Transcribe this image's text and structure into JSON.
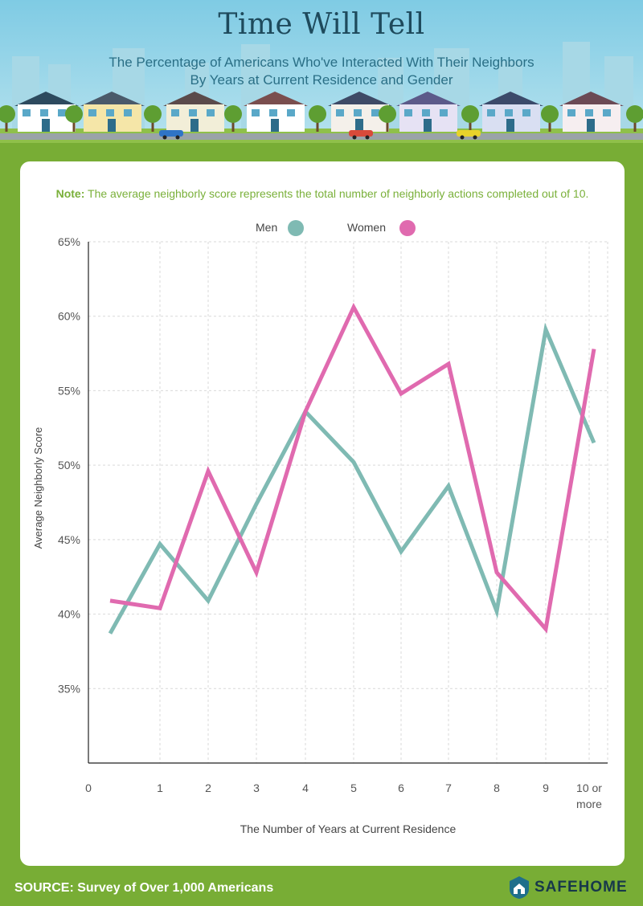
{
  "header": {
    "title": "Time Will Tell",
    "subtitle_line1": "The Percentage of Americans Who've Interacted With Their Neighbors",
    "subtitle_line2": "By Years at Current Residence and Gender"
  },
  "note": {
    "label": "Note:",
    "text": "The average neighborly score represents the total number of neighborly actions completed out of 10."
  },
  "footer": {
    "source": "SOURCE: Survey of Over 1,000 Americans",
    "brand": "SAFEHOME"
  },
  "colors": {
    "men": "#7fbab3",
    "women": "#e06aaf",
    "accent_green": "#78ad35",
    "note_green": "#7ab03a"
  },
  "chart_data": {
    "type": "line",
    "ylabel": "Average Neighborly Score",
    "xlabel": "The Number of Years at Current Residence",
    "x_ticks": [
      "0",
      "1",
      "2",
      "3",
      "4",
      "5",
      "6",
      "7",
      "8",
      "9",
      "10 or more"
    ],
    "categories": [
      "0",
      "1",
      "2",
      "3",
      "4",
      "5",
      "6",
      "7",
      "8",
      "9",
      "10 or more"
    ],
    "y_ticks": [
      "65%",
      "60%",
      "55%",
      "50%",
      "45%",
      "40%",
      "35%"
    ],
    "ylim": [
      30,
      65
    ],
    "grid": true,
    "legend_position": "top-center",
    "series": [
      {
        "name": "Men",
        "values": [
          38.7,
          44.7,
          40.9,
          47.4,
          53.6,
          50.2,
          44.2,
          48.6,
          40.2,
          59.1,
          51.5
        ]
      },
      {
        "name": "Women",
        "values": [
          40.9,
          40.4,
          49.6,
          42.8,
          53.6,
          60.6,
          54.8,
          56.8,
          42.8,
          39.0,
          57.8
        ]
      }
    ]
  }
}
